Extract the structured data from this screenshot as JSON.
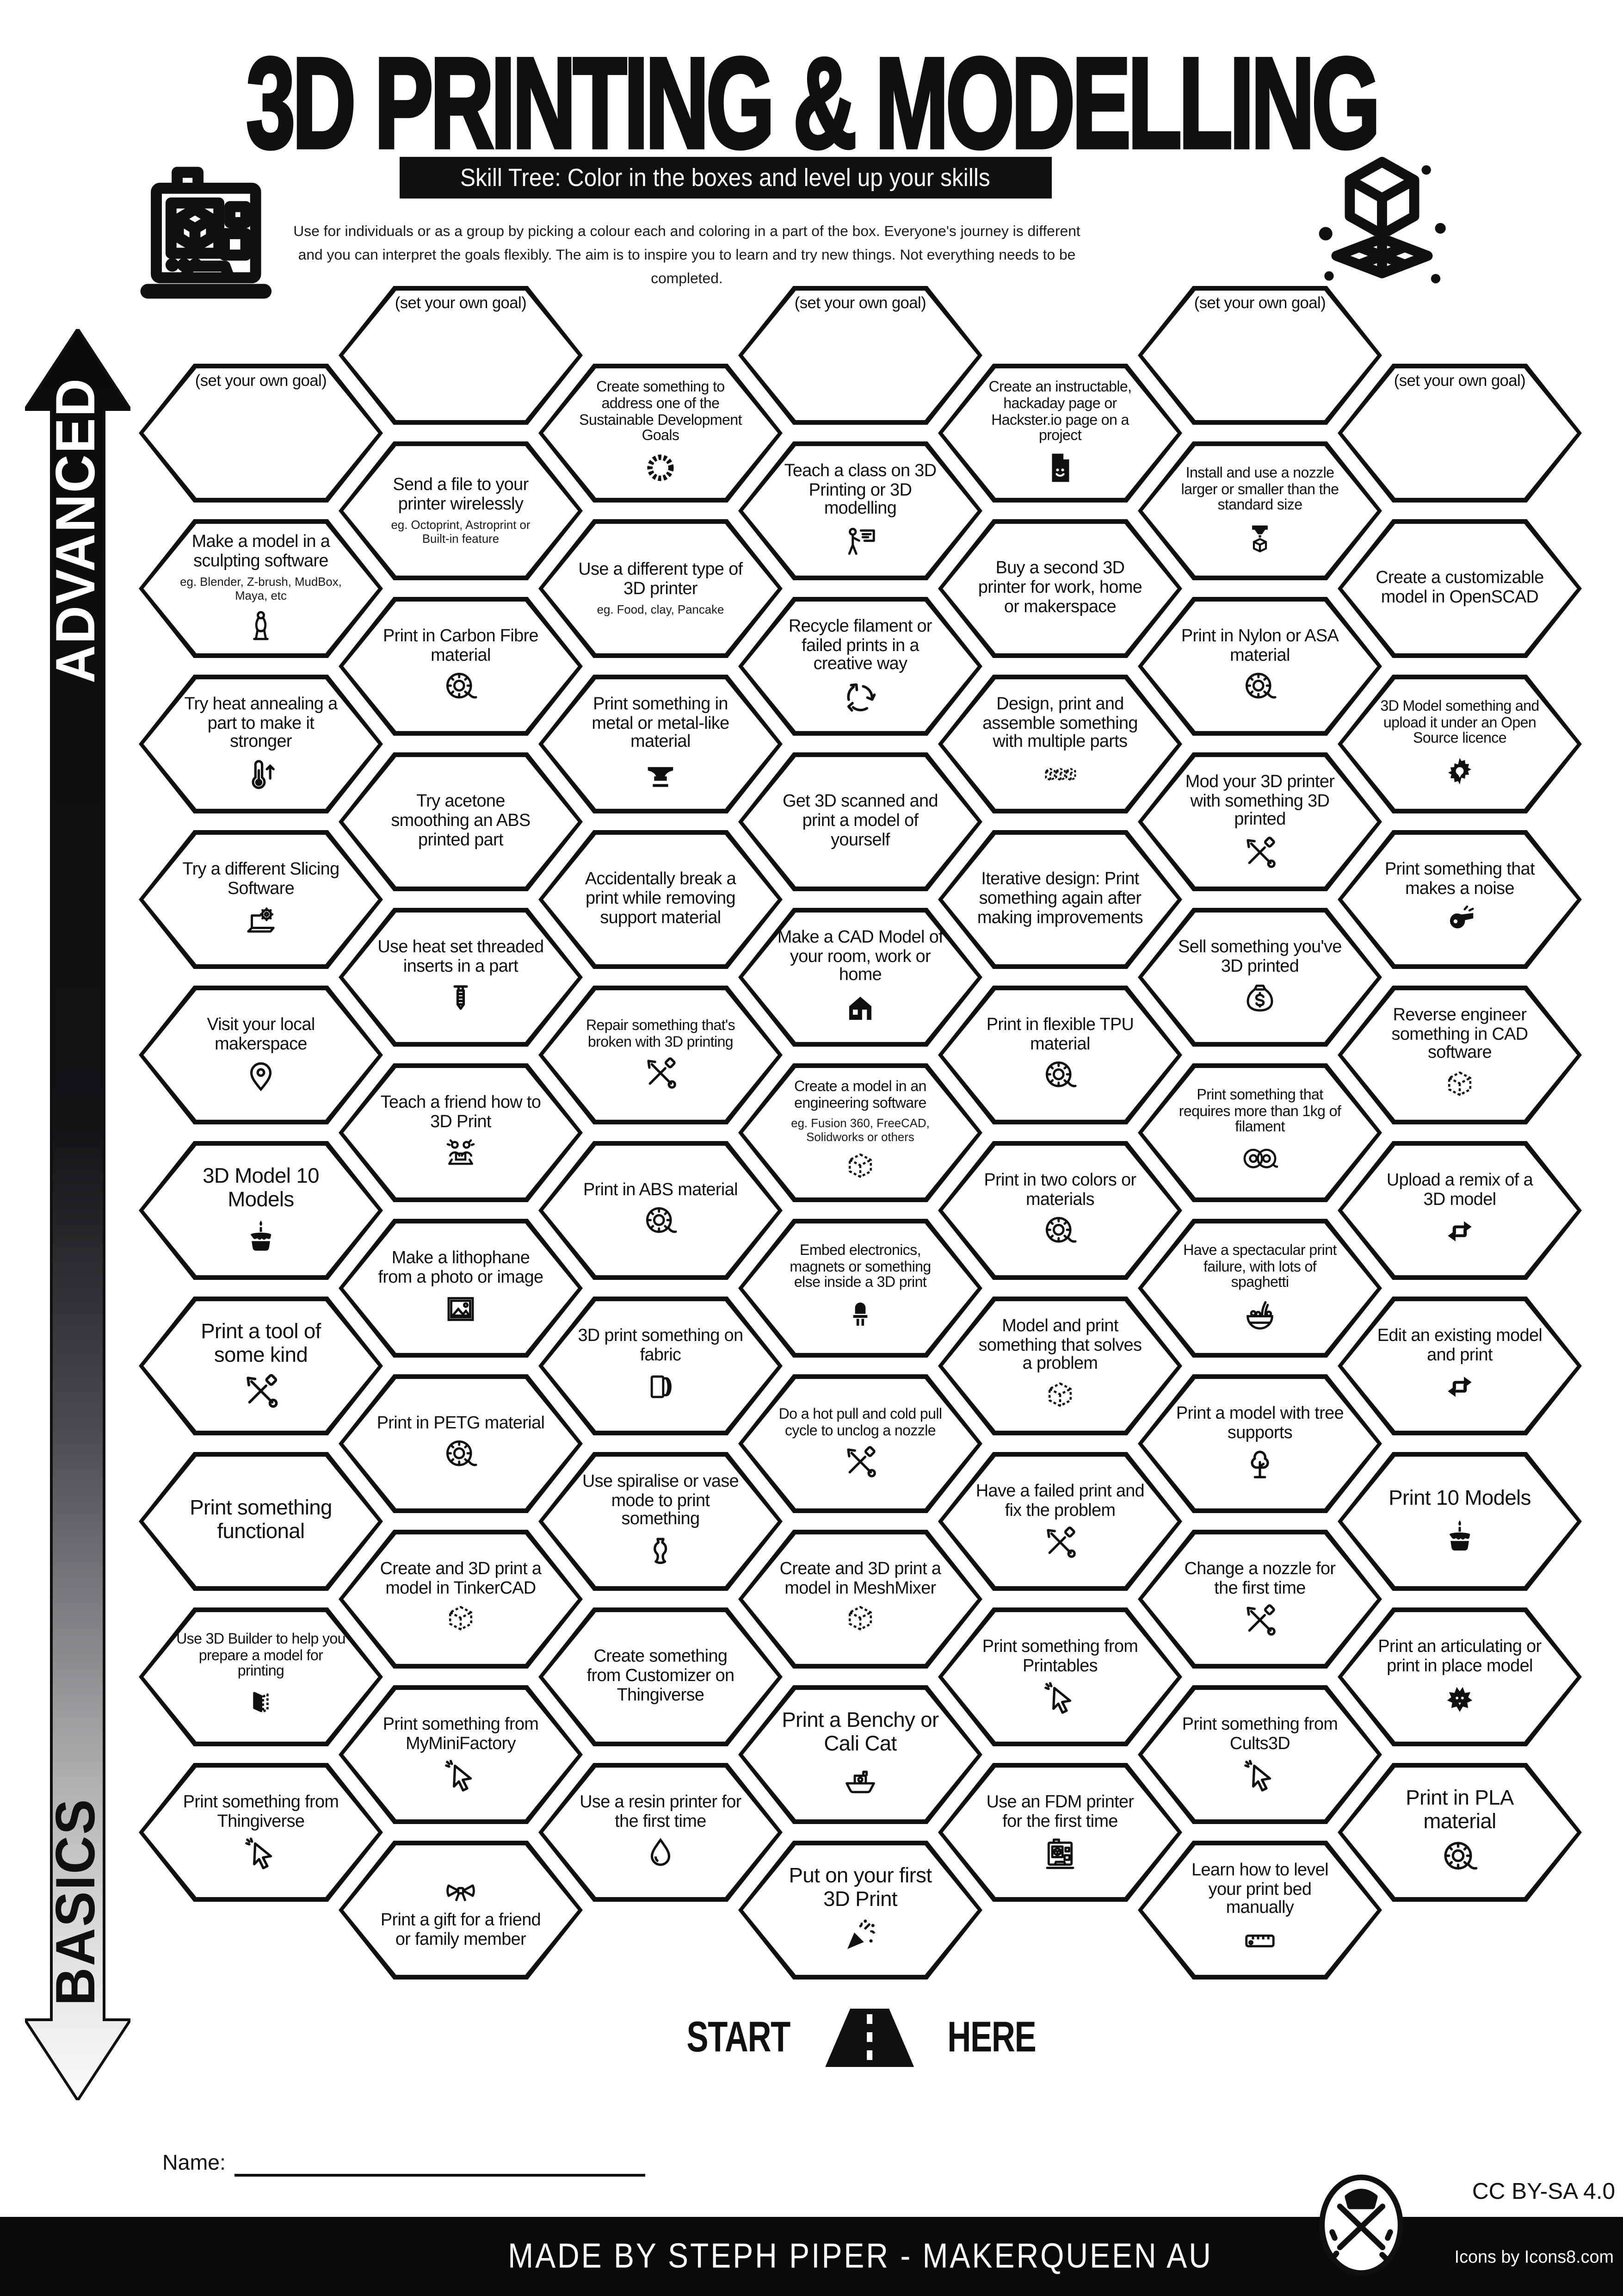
{
  "header": {
    "title": "3D PRINTING & MODELLING",
    "subtitle": "Skill Tree:  Color in the boxes and level up your skills",
    "intro": "Use for individuals or as a group by picking a colour each and coloring in a part of the box.  Everyone's journey is different and you can interpret the goals flexibly.  The aim is to inspire you to learn and try new things. Not everything needs to be completed."
  },
  "axis": {
    "advanced": "ADVANCED",
    "basics": "BASICS"
  },
  "start": {
    "left": "START",
    "right": "HERE"
  },
  "footer": {
    "name_label": "Name:",
    "credit": "MADE BY STEPH PIPER  -  MAKERQUEEN AU",
    "license": "CC BY-SA 4.0",
    "icons_credit": "Icons by Icons8.com"
  },
  "colors": {
    "ink": "#101013",
    "paper": "#ffffff"
  },
  "hexes": [
    {
      "c": 0,
      "r": 0,
      "label": "(set your own goal)",
      "cls": "goal"
    },
    {
      "c": 0,
      "r": 1,
      "label": "Make a model in a sculpting software",
      "sub": "eg. Blender, Z-brush, MudBox, Maya, etc",
      "icon": "statue"
    },
    {
      "c": 0,
      "r": 2,
      "label": "Try heat annealing a part to make it stronger",
      "icon": "thermo"
    },
    {
      "c": 0,
      "r": 3,
      "label": "Try a different Slicing Software",
      "icon": "laptopgear"
    },
    {
      "c": 0,
      "r": 4,
      "label": "Visit your local makerspace",
      "icon": "pin"
    },
    {
      "c": 0,
      "r": 5,
      "label": "3D Model 10 Models",
      "cls": "big",
      "icon": "cake"
    },
    {
      "c": 0,
      "r": 6,
      "label": "Print a tool of some kind",
      "cls": "big",
      "icon": "tools"
    },
    {
      "c": 0,
      "r": 7,
      "label": "Print something functional",
      "cls": "big"
    },
    {
      "c": 0,
      "r": 8,
      "label": "Use 3D Builder to help you prepare a model for printing",
      "cls": "small",
      "icon": "builder"
    },
    {
      "c": 0,
      "r": 9,
      "label": "Print something from Thingiverse",
      "icon": "cursor"
    },
    {
      "c": 1,
      "r": 0,
      "label": "(set your own goal)",
      "cls": "goal"
    },
    {
      "c": 1,
      "r": 1,
      "label": "Send a file to your printer wirelessly",
      "sub": "eg. Octoprint, Astroprint or Built-in feature"
    },
    {
      "c": 1,
      "r": 2,
      "label": "Print in Carbon Fibre material",
      "icon": "spool"
    },
    {
      "c": 1,
      "r": 3,
      "label": "Try acetone smoothing an ABS printed part"
    },
    {
      "c": 1,
      "r": 4,
      "label": "Use heat set threaded inserts in a part",
      "icon": "screw"
    },
    {
      "c": 1,
      "r": 5,
      "label": "Teach a friend how to 3D Print",
      "icon": "teach"
    },
    {
      "c": 1,
      "r": 6,
      "label": "Make a lithophane from a photo or image",
      "icon": "photo"
    },
    {
      "c": 1,
      "r": 7,
      "label": "Print in PETG material",
      "icon": "spool"
    },
    {
      "c": 1,
      "r": 8,
      "label": "Create and 3D print a model in TinkerCAD",
      "icon": "cube"
    },
    {
      "c": 1,
      "r": 9,
      "label": "Print something from MyMiniFactory",
      "icon": "cursor"
    },
    {
      "c": 1,
      "r": 10,
      "label": "Print a gift for a friend or family member",
      "icon": "bow",
      "icon_top": true
    },
    {
      "c": 2,
      "r": 0,
      "label": "Create something to address one of the Sustainable Development Goals",
      "cls": "small",
      "icon": "sdg"
    },
    {
      "c": 2,
      "r": 1,
      "label": "Use a different type of 3D printer",
      "sub": "eg. Food, clay, Pancake"
    },
    {
      "c": 2,
      "r": 2,
      "label": "Print something in metal or metal-like material",
      "icon": "anvil"
    },
    {
      "c": 2,
      "r": 3,
      "label": "Accidentally break a print while removing support material"
    },
    {
      "c": 2,
      "r": 4,
      "label": "Repair something that's broken with 3D printing",
      "cls": "small",
      "icon": "tools"
    },
    {
      "c": 2,
      "r": 5,
      "label": "Print in ABS material",
      "icon": "spool"
    },
    {
      "c": 2,
      "r": 6,
      "label": "3D print something on fabric",
      "icon": "fabric"
    },
    {
      "c": 2,
      "r": 7,
      "label": "Use spiralise or vase mode to print something",
      "icon": "vase"
    },
    {
      "c": 2,
      "r": 8,
      "label": "Create something from Customizer on Thingiverse"
    },
    {
      "c": 2,
      "r": 9,
      "label": "Use a resin printer for the first time",
      "icon": "drop"
    },
    {
      "c": 3,
      "r": 0,
      "label": "(set your own goal)",
      "cls": "goal"
    },
    {
      "c": 3,
      "r": 1,
      "label": "Teach a class on 3D Printing or 3D modelling",
      "icon": "present"
    },
    {
      "c": 3,
      "r": 2,
      "label": "Recycle filament or failed prints in a creative way",
      "icon": "recycle"
    },
    {
      "c": 3,
      "r": 3,
      "label": "Get 3D scanned and print a model of yourself"
    },
    {
      "c": 3,
      "r": 4,
      "label": "Make a CAD Model of your room, work or home",
      "icon": "house"
    },
    {
      "c": 3,
      "r": 5,
      "label": "Create a model in an engineering software",
      "cls": "small",
      "sub": "eg. Fusion 360, FreeCAD, Solidworks or others",
      "icon": "cube"
    },
    {
      "c": 3,
      "r": 6,
      "label": "Embed electronics, magnets or something else inside a 3D print",
      "cls": "small",
      "icon": "led"
    },
    {
      "c": 3,
      "r": 7,
      "label": "Do a hot pull and cold pull cycle to unclog a nozzle",
      "cls": "small",
      "icon": "tools"
    },
    {
      "c": 3,
      "r": 8,
      "label": "Create and 3D print a model in MeshMixer",
      "icon": "cube"
    },
    {
      "c": 3,
      "r": 9,
      "label": "Print a Benchy or Cali Cat",
      "cls": "big",
      "icon": "benchy"
    },
    {
      "c": 3,
      "r": 10,
      "label": "Put on your first 3D Print",
      "cls": "big",
      "icon": "party"
    },
    {
      "c": 4,
      "r": 0,
      "label": "Create an instructable, hackaday page or Hackster.io page on a project",
      "cls": "small",
      "icon": "docsmile"
    },
    {
      "c": 4,
      "r": 1,
      "label": "Buy a second 3D printer for work, home or makerspace"
    },
    {
      "c": 4,
      "r": 2,
      "label": "Design, print and assemble something with multiple parts",
      "icon": "cubes3"
    },
    {
      "c": 4,
      "r": 3,
      "label": "Iterative design: Print something again after making improvements"
    },
    {
      "c": 4,
      "r": 4,
      "label": "Print in flexible TPU material",
      "icon": "spool"
    },
    {
      "c": 4,
      "r": 5,
      "label": "Print in two colors or materials",
      "icon": "spool"
    },
    {
      "c": 4,
      "r": 6,
      "label": "Model and print something that solves a problem",
      "icon": "cube"
    },
    {
      "c": 4,
      "r": 7,
      "label": "Have a failed print and fix the problem",
      "icon": "tools"
    },
    {
      "c": 4,
      "r": 8,
      "label": "Print something from Printables",
      "icon": "cursor"
    },
    {
      "c": 4,
      "r": 9,
      "label": "Use an FDM printer for the first time",
      "icon": "printer"
    },
    {
      "c": 5,
      "r": 0,
      "label": "(set your own goal)",
      "cls": "goal"
    },
    {
      "c": 5,
      "r": 1,
      "label": "Install and use a nozzle larger or smaller than the standard size",
      "cls": "small",
      "icon": "nozzle"
    },
    {
      "c": 5,
      "r": 2,
      "label": "Print in Nylon or ASA material",
      "icon": "spool"
    },
    {
      "c": 5,
      "r": 3,
      "label": "Mod your 3D printer with something 3D printed",
      "icon": "tools"
    },
    {
      "c": 5,
      "r": 4,
      "label": "Sell something you've 3D printed",
      "icon": "moneybag"
    },
    {
      "c": 5,
      "r": 5,
      "label": "Print something that requires more than 1kg of filament",
      "cls": "small",
      "icon": "spool2"
    },
    {
      "c": 5,
      "r": 6,
      "label": "Have a spectacular print failure, with lots of spaghetti",
      "cls": "small",
      "icon": "spaghetti"
    },
    {
      "c": 5,
      "r": 7,
      "label": "Print a model with tree supports",
      "icon": "tree"
    },
    {
      "c": 5,
      "r": 8,
      "label": "Change a nozzle for the first time",
      "icon": "tools"
    },
    {
      "c": 5,
      "r": 9,
      "label": "Print something from Cults3D",
      "icon": "cursor"
    },
    {
      "c": 5,
      "r": 10,
      "label": "Learn how to level your print bed manually",
      "icon": "ruler"
    },
    {
      "c": 6,
      "r": 0,
      "label": "(set your own goal)",
      "cls": "goal"
    },
    {
      "c": 6,
      "r": 1,
      "label": "Create a customizable model in OpenSCAD"
    },
    {
      "c": 6,
      "r": 2,
      "label": "3D Model something and upload it under an Open Source licence",
      "cls": "small",
      "icon": "gearfill"
    },
    {
      "c": 6,
      "r": 3,
      "label": "Print something that makes a noise",
      "icon": "whistle"
    },
    {
      "c": 6,
      "r": 4,
      "label": "Reverse engineer something in CAD software",
      "icon": "cube"
    },
    {
      "c": 6,
      "r": 5,
      "label": "Upload a remix of a 3D model",
      "icon": "remix"
    },
    {
      "c": 6,
      "r": 6,
      "label": "Edit an existing model and print",
      "icon": "remix"
    },
    {
      "c": 6,
      "r": 7,
      "label": "Print 10 Models",
      "cls": "big",
      "icon": "cake"
    },
    {
      "c": 6,
      "r": 8,
      "label": "Print an articulating or print in place model",
      "icon": "dragon"
    },
    {
      "c": 6,
      "r": 9,
      "label": "Print in PLA material",
      "cls": "big",
      "icon": "spool"
    }
  ]
}
